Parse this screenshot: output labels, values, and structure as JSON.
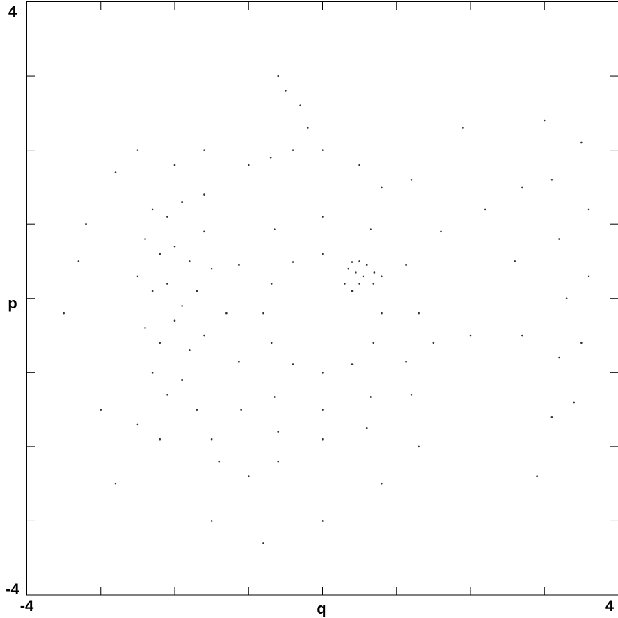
{
  "chart_data": {
    "type": "scatter",
    "x_label": "q",
    "y_label": "p",
    "xlim": [
      -4,
      4
    ],
    "ylim": [
      -4,
      4
    ],
    "xticks": [
      -4,
      4
    ],
    "yticks": [
      -4,
      4
    ],
    "minor_xticks": [
      -3,
      -2,
      -1,
      0,
      1,
      2,
      3
    ],
    "minor_yticks": [
      -3,
      -2,
      -1,
      0,
      1,
      2,
      3
    ],
    "color": "#333333",
    "x": [
      1.3,
      1.13,
      0.65,
      0,
      -0.65,
      -1.13,
      -1.3,
      -1.13,
      -0.65,
      0,
      0.65,
      1.13,
      0.8,
      0.69,
      0.4,
      0,
      -0.4,
      -0.69,
      -0.8,
      -0.69,
      -0.4,
      0,
      0.4,
      0.69,
      1.5,
      1.2,
      0.6,
      0,
      -0.6,
      -1.1,
      0.35,
      0.45,
      0.55,
      0.5,
      0.4,
      0.3,
      0.6,
      0.7,
      0.8,
      0.5,
      -2.3,
      -2.1,
      -1.9,
      -1.6,
      -2.4,
      -2.2,
      -2.0,
      -1.8,
      -1.6,
      -2.5,
      -2.3,
      -2.1,
      -1.9,
      -1.7,
      -1.5,
      -2.4,
      -2.2,
      -2.0,
      -1.8,
      -1.6,
      -2.3,
      -2.1,
      -1.9,
      -1.7,
      -2.5,
      -2.2,
      -1.5,
      -1.4,
      -1.0,
      -0.6,
      -1.0,
      -0.7,
      -0.4,
      -0.2,
      -0.5,
      -0.6,
      -0.3,
      0.0,
      0.5,
      0.8,
      -1.6,
      -2.0,
      -2.8,
      -3.3,
      -3.5,
      -3.0,
      -2.8,
      -3.2,
      -2.5,
      -1.5,
      -0.8,
      0.0,
      0.8,
      1.3,
      1.6,
      1.2,
      2.0,
      2.2,
      1.9,
      3.0,
      3.1,
      3.2,
      3.3,
      3.2,
      3.1,
      2.9,
      3.5,
      3.6,
      3.6,
      3.5,
      3.4,
      2.7,
      2.6,
      2.7
    ],
    "values": [
      -0.2,
      0.45,
      0.93,
      1.1,
      0.93,
      0.45,
      -0.2,
      -0.85,
      -1.33,
      -1.5,
      -1.33,
      -0.85,
      -0.2,
      0.2,
      0.49,
      0.6,
      0.49,
      0.2,
      -0.2,
      -0.6,
      -0.89,
      -1.0,
      -0.89,
      -0.6,
      -0.6,
      -1.3,
      -1.75,
      -1.9,
      -1.8,
      -1.5,
      0.4,
      0.35,
      0.3,
      0.2,
      0.1,
      0.2,
      0.45,
      0.35,
      0.3,
      0.5,
      1.2,
      1.1,
      1.3,
      1.4,
      0.8,
      0.6,
      0.7,
      0.5,
      0.9,
      0.3,
      0.1,
      0.2,
      -0.1,
      0.1,
      0.4,
      -0.4,
      -0.6,
      -0.3,
      -0.7,
      -0.5,
      -1.0,
      -1.3,
      -1.1,
      -1.5,
      -1.7,
      -1.9,
      -1.9,
      -2.2,
      -2.4,
      -2.2,
      1.8,
      1.9,
      2.0,
      2.3,
      2.8,
      3.0,
      2.6,
      2.0,
      1.8,
      1.5,
      2.0,
      1.8,
      1.7,
      0.5,
      -0.2,
      -1.5,
      -2.5,
      1.0,
      2.0,
      -3.0,
      -3.3,
      -3.0,
      -2.5,
      -2.0,
      0.9,
      1.6,
      -0.5,
      1.2,
      2.3,
      2.4,
      1.6,
      0.8,
      0.0,
      -0.8,
      -1.6,
      -2.4,
      2.1,
      1.2,
      0.3,
      -0.6,
      -1.4,
      1.5,
      0.5,
      -0.5
    ]
  }
}
